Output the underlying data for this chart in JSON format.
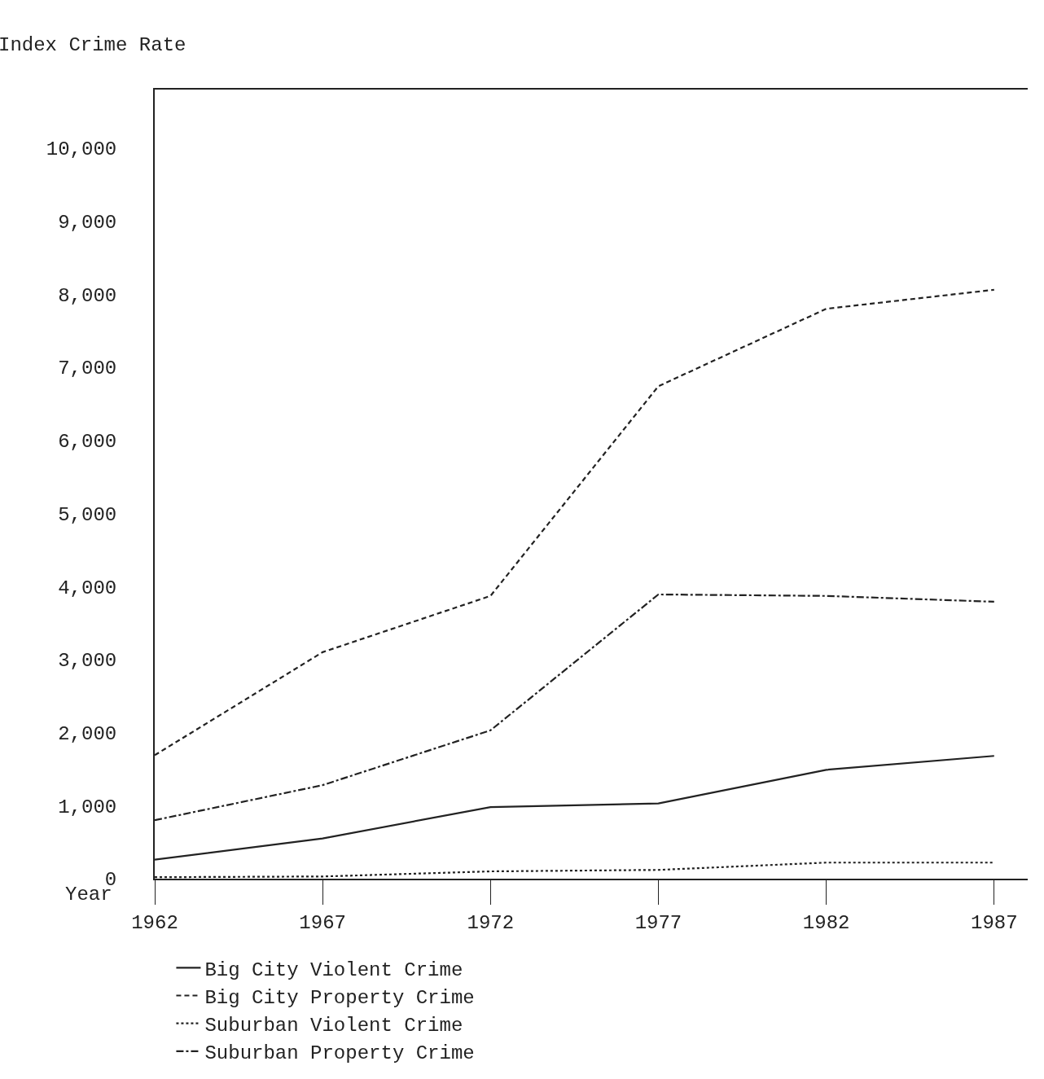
{
  "chart_data": {
    "type": "line",
    "xlabel": "Year",
    "ylabel": "Index Crime Rate",
    "x": [
      1962,
      1967,
      1972,
      1977,
      1982,
      1987
    ],
    "series": [
      {
        "name": "Big City Violent Crime",
        "color": "#222222",
        "line_style": "solid",
        "values": [
          260,
          550,
          980,
          1030,
          1490,
          1680
        ]
      },
      {
        "name": "Big City Property Crime",
        "color": "#222222",
        "line_style": "dashed",
        "values": [
          1690,
          3100,
          3870,
          6740,
          7800,
          8060
        ]
      },
      {
        "name": "Suburban Violent Crime",
        "color": "#222222",
        "line_style": "dotted",
        "values": [
          20,
          30,
          100,
          120,
          220,
          220
        ]
      },
      {
        "name": "Suburban Property Crime",
        "color": "#222222",
        "line_style": "dashdot",
        "values": [
          800,
          1280,
          2030,
          3890,
          3870,
          3790
        ]
      }
    ],
    "xlim": [
      1962,
      1988
    ],
    "xticks": [
      1962,
      1967,
      1972,
      1977,
      1982,
      1987
    ],
    "ylim": [
      0,
      10800
    ],
    "yticks": [
      0,
      {
        "value": 1000,
        "label": "1,000"
      },
      {
        "value": 2000,
        "label": "2,000"
      },
      {
        "value": 3000,
        "label": "3,000"
      },
      {
        "value": 4000,
        "label": "4,000"
      },
      {
        "value": 5000,
        "label": "5,000"
      },
      {
        "value": 6000,
        "label": "6,000"
      },
      {
        "value": 7000,
        "label": "7,000"
      },
      {
        "value": 8000,
        "label": "8,000"
      },
      {
        "value": 9000,
        "label": "9,000"
      },
      {
        "value": 10000,
        "label": "10,000"
      }
    ],
    "grid": false,
    "legend": "bottom",
    "marker": "none"
  }
}
